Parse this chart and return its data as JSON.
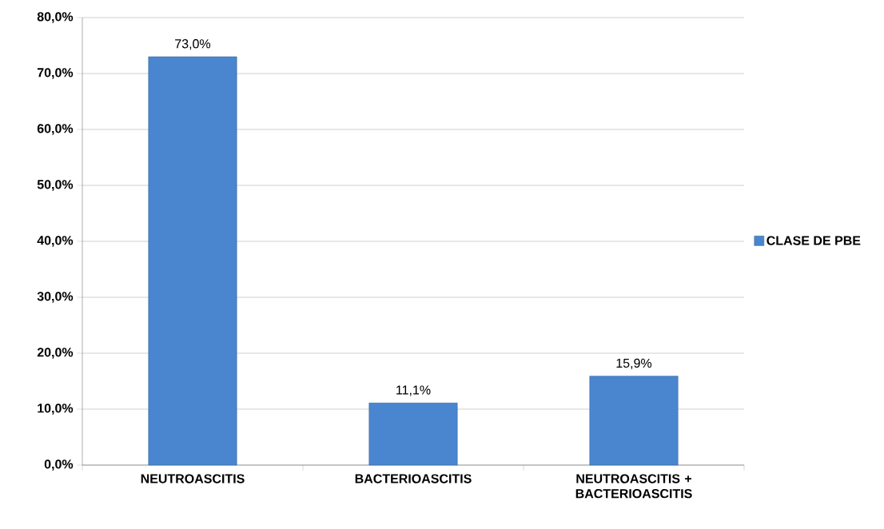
{
  "chart_data": {
    "type": "bar",
    "categories": [
      "NEUTROASCITIS",
      "BACTERIOASCITIS",
      "NEUTROASCITIS + BACTERIOASCITIS"
    ],
    "series": [
      {
        "name": "CLASE DE PBE",
        "color": "#4a86d0",
        "values": [
          73.0,
          11.1,
          15.9
        ],
        "value_labels": [
          "73,0%",
          "11,1%",
          "15,9%"
        ]
      }
    ],
    "ylim": [
      0,
      80
    ],
    "yticks": [
      {
        "value": 0,
        "label": "0,0%"
      },
      {
        "value": 10,
        "label": "10,0%"
      },
      {
        "value": 20,
        "label": "20,0%"
      },
      {
        "value": 30,
        "label": "30,0%"
      },
      {
        "value": 40,
        "label": "40,0%"
      },
      {
        "value": 50,
        "label": "50,0%"
      },
      {
        "value": 60,
        "label": "60,0%"
      },
      {
        "value": 70,
        "label": "70,0%"
      },
      {
        "value": 80,
        "label": "80,0%"
      }
    ],
    "grid": "y",
    "legend": "right"
  }
}
